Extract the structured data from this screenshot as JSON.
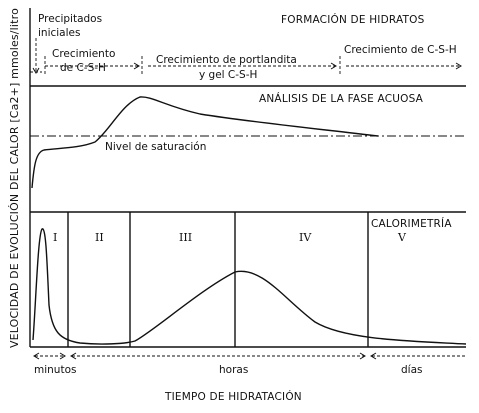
{
  "labels": {
    "precipitados_line1": "Precipitados",
    "precipitados_line2": "iniciales",
    "formacion": "FORMACIÓN DE HIDRATOS",
    "crec_csh_1_line1": "Crecimiento",
    "crec_csh_1_line2": "de C-S-H",
    "crec_port_line1": "Crecimiento de portlandita",
    "crec_port_line2": "y gel C-S-H",
    "crec_csh_2": "Crecimiento de C-S-H",
    "analisis": "ANÁLISIS DE LA FASE ACUOSA",
    "saturacion": "Nivel de saturación",
    "calorimetria": "CALORIMETRÍA",
    "y_axis": "VELOCIDAD DE EVOLUCIÓN DEL CALOR [Ca2+] mmoles/litro",
    "x_axis": "TIEMPO DE HIDRATACIÓN",
    "minutos": "minutos",
    "horas": "horas",
    "dias": "días"
  },
  "stages": [
    "I",
    "II",
    "III",
    "IV",
    "V"
  ]
}
